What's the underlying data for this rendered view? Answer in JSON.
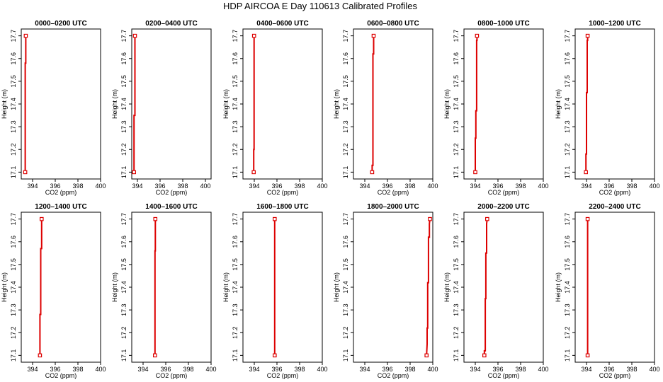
{
  "figure": {
    "title": "HDP AIRCOA E  Day 110613  Calibrated Profiles"
  },
  "colors": {
    "profile": "#dd0000",
    "axis": "#000000"
  },
  "chart_data": [
    {
      "type": "line",
      "title": "0000–0200 UTC",
      "xlabel": "CO2 (ppm)",
      "ylabel": "Height (m)",
      "xlim": [
        393,
        400
      ],
      "ylim": [
        17.07,
        17.73
      ],
      "xticks": [
        "394",
        "396",
        "398",
        "400"
      ],
      "yticks": [
        "17.1",
        "17.2",
        "17.3",
        "17.4",
        "17.5",
        "17.6",
        "17.7"
      ],
      "line_x": [
        393.35,
        393.35,
        393.4,
        393.4
      ],
      "line_y": [
        17.1,
        17.58,
        17.58,
        17.7
      ],
      "points": [
        {
          "x": 393.35,
          "y": 17.1
        },
        {
          "x": 393.4,
          "y": 17.7
        }
      ]
    },
    {
      "type": "line",
      "title": "0200–0400 UTC",
      "xlabel": "CO2 (ppm)",
      "ylabel": "Height (m)",
      "xlim": [
        393.5,
        400.5
      ],
      "ylim": [
        17.07,
        17.73
      ],
      "xticks": [
        "394",
        "396",
        "398",
        "400"
      ],
      "yticks": [
        "17.1",
        "17.2",
        "17.3",
        "17.4",
        "17.5",
        "17.6",
        "17.7"
      ],
      "line_x": [
        393.7,
        393.7,
        393.78,
        393.78
      ],
      "line_y": [
        17.1,
        17.35,
        17.35,
        17.7
      ],
      "points": [
        {
          "x": 393.7,
          "y": 17.1
        },
        {
          "x": 393.78,
          "y": 17.7
        }
      ]
    },
    {
      "type": "line",
      "title": "0400–0600 UTC",
      "xlabel": "CO2 (ppm)",
      "ylabel": "Height (m)",
      "xlim": [
        393,
        400
      ],
      "ylim": [
        17.07,
        17.73
      ],
      "xticks": [
        "394",
        "396",
        "398",
        "400"
      ],
      "yticks": [
        "17.1",
        "17.2",
        "17.3",
        "17.4",
        "17.5",
        "17.6",
        "17.7"
      ],
      "line_x": [
        393.95,
        393.95,
        393.98,
        393.98
      ],
      "line_y": [
        17.1,
        17.2,
        17.2,
        17.7
      ],
      "points": [
        {
          "x": 393.95,
          "y": 17.1
        },
        {
          "x": 393.98,
          "y": 17.7
        }
      ]
    },
    {
      "type": "line",
      "title": "0600–0800 UTC",
      "xlabel": "CO2 (ppm)",
      "ylabel": "Height (m)",
      "xlim": [
        393,
        400
      ],
      "ylim": [
        17.07,
        17.73
      ],
      "xticks": [
        "394",
        "396",
        "398",
        "400"
      ],
      "yticks": [
        "17.1",
        "17.2",
        "17.3",
        "17.4",
        "17.5",
        "17.6",
        "17.7"
      ],
      "line_x": [
        394.65,
        394.65,
        394.72,
        394.72,
        394.78,
        394.78
      ],
      "line_y": [
        17.1,
        17.13,
        17.13,
        17.62,
        17.62,
        17.7
      ],
      "points": [
        {
          "x": 394.65,
          "y": 17.1
        },
        {
          "x": 394.78,
          "y": 17.7
        }
      ]
    },
    {
      "type": "line",
      "title": "0800–1000 UTC",
      "xlabel": "CO2 (ppm)",
      "ylabel": "Height (m)",
      "xlim": [
        393,
        400
      ],
      "ylim": [
        17.07,
        17.73
      ],
      "xticks": [
        "394",
        "396",
        "398",
        "400"
      ],
      "yticks": [
        "17.1",
        "17.2",
        "17.3",
        "17.4",
        "17.5",
        "17.6",
        "17.7"
      ],
      "line_x": [
        394.0,
        394.0,
        394.05,
        394.05,
        394.12,
        394.12,
        394.15,
        394.15
      ],
      "line_y": [
        17.1,
        17.25,
        17.25,
        17.37,
        17.37,
        17.68,
        17.68,
        17.7
      ],
      "points": [
        {
          "x": 394.0,
          "y": 17.1
        },
        {
          "x": 394.15,
          "y": 17.7
        }
      ]
    },
    {
      "type": "line",
      "title": "1000–1200 UTC",
      "xlabel": "CO2 (ppm)",
      "ylabel": "Height (m)",
      "xlim": [
        393,
        400
      ],
      "ylim": [
        17.07,
        17.73
      ],
      "xticks": [
        "394",
        "396",
        "398",
        "400"
      ],
      "yticks": [
        "17.1",
        "17.2",
        "17.3",
        "17.4",
        "17.5",
        "17.6",
        "17.7"
      ],
      "line_x": [
        393.95,
        393.95,
        394.0,
        394.0,
        394.06,
        394.06,
        394.1,
        394.1
      ],
      "line_y": [
        17.1,
        17.18,
        17.18,
        17.45,
        17.45,
        17.68,
        17.68,
        17.7
      ],
      "points": [
        {
          "x": 393.95,
          "y": 17.1
        },
        {
          "x": 394.1,
          "y": 17.7
        }
      ]
    },
    {
      "type": "line",
      "title": "1200–1400 UTC",
      "xlabel": "CO2 (ppm)",
      "ylabel": "Height (m)",
      "xlim": [
        393,
        400
      ],
      "ylim": [
        17.07,
        17.73
      ],
      "xticks": [
        "394",
        "396",
        "398",
        "400"
      ],
      "yticks": [
        "17.1",
        "17.2",
        "17.3",
        "17.4",
        "17.5",
        "17.6",
        "17.7"
      ],
      "line_x": [
        394.65,
        394.65,
        394.72,
        394.72,
        394.8,
        394.8
      ],
      "line_y": [
        17.1,
        17.28,
        17.28,
        17.57,
        17.57,
        17.7
      ],
      "points": [
        {
          "x": 394.65,
          "y": 17.1
        },
        {
          "x": 394.8,
          "y": 17.7
        }
      ]
    },
    {
      "type": "line",
      "title": "1400–1600 UTC",
      "xlabel": "CO2 (ppm)",
      "ylabel": "Height (m)",
      "xlim": [
        393,
        400
      ],
      "ylim": [
        17.07,
        17.73
      ],
      "xticks": [
        "394",
        "396",
        "398",
        "400"
      ],
      "yticks": [
        "17.1",
        "17.2",
        "17.3",
        "17.4",
        "17.5",
        "17.6",
        "17.7"
      ],
      "line_x": [
        395.05,
        395.05,
        395.08,
        395.08
      ],
      "line_y": [
        17.1,
        17.56,
        17.56,
        17.7
      ],
      "points": [
        {
          "x": 395.05,
          "y": 17.1
        },
        {
          "x": 395.08,
          "y": 17.7
        }
      ]
    },
    {
      "type": "line",
      "title": "1600–1800 UTC",
      "xlabel": "CO2 (ppm)",
      "ylabel": "Height (m)",
      "xlim": [
        393,
        400
      ],
      "ylim": [
        17.07,
        17.73
      ],
      "xticks": [
        "394",
        "396",
        "398",
        "400"
      ],
      "yticks": [
        "17.1",
        "17.2",
        "17.3",
        "17.4",
        "17.5",
        "17.6",
        "17.7"
      ],
      "line_x": [
        395.8,
        395.8
      ],
      "line_y": [
        17.1,
        17.7
      ],
      "points": [
        {
          "x": 395.8,
          "y": 17.1
        },
        {
          "x": 395.8,
          "y": 17.7
        }
      ]
    },
    {
      "type": "line",
      "title": "1800–2000 UTC",
      "xlabel": "CO2 (ppm)",
      "ylabel": "Height (m)",
      "xlim": [
        393,
        400
      ],
      "ylim": [
        17.07,
        17.73
      ],
      "xticks": [
        "394",
        "396",
        "398",
        "400"
      ],
      "yticks": [
        "17.1",
        "17.2",
        "17.3",
        "17.4",
        "17.5",
        "17.6",
        "17.7"
      ],
      "line_x": [
        399.45,
        399.5,
        399.5,
        399.55,
        399.55,
        399.62,
        399.62,
        399.7,
        399.7,
        399.75
      ],
      "line_y": [
        17.1,
        17.15,
        17.22,
        17.22,
        17.42,
        17.42,
        17.62,
        17.62,
        17.68,
        17.7
      ],
      "points": [
        {
          "x": 399.45,
          "y": 17.1
        },
        {
          "x": 399.75,
          "y": 17.7
        }
      ]
    },
    {
      "type": "line",
      "title": "2000–2200 UTC",
      "xlabel": "CO2 (ppm)",
      "ylabel": "Height (m)",
      "xlim": [
        393,
        400
      ],
      "ylim": [
        17.07,
        17.73
      ],
      "xticks": [
        "394",
        "396",
        "398",
        "400"
      ],
      "yticks": [
        "17.1",
        "17.2",
        "17.3",
        "17.4",
        "17.5",
        "17.6",
        "17.7"
      ],
      "line_x": [
        394.8,
        394.8,
        394.88,
        394.88,
        394.93,
        394.93,
        395.0,
        395.0,
        395.05
      ],
      "line_y": [
        17.1,
        17.12,
        17.12,
        17.35,
        17.35,
        17.55,
        17.55,
        17.68,
        17.7
      ],
      "points": [
        {
          "x": 394.8,
          "y": 17.1
        },
        {
          "x": 395.05,
          "y": 17.7
        }
      ]
    },
    {
      "type": "line",
      "title": "2200–2400 UTC",
      "xlabel": "CO2 (ppm)",
      "ylabel": "Height (m)",
      "xlim": [
        393,
        400
      ],
      "ylim": [
        17.07,
        17.73
      ],
      "xticks": [
        "394",
        "396",
        "398",
        "400"
      ],
      "yticks": [
        "17.1",
        "17.2",
        "17.3",
        "17.4",
        "17.5",
        "17.6",
        "17.7"
      ],
      "line_x": [
        394.1,
        394.1
      ],
      "line_y": [
        17.1,
        17.7
      ],
      "points": [
        {
          "x": 394.1,
          "y": 17.1
        },
        {
          "x": 394.1,
          "y": 17.7
        }
      ]
    }
  ]
}
